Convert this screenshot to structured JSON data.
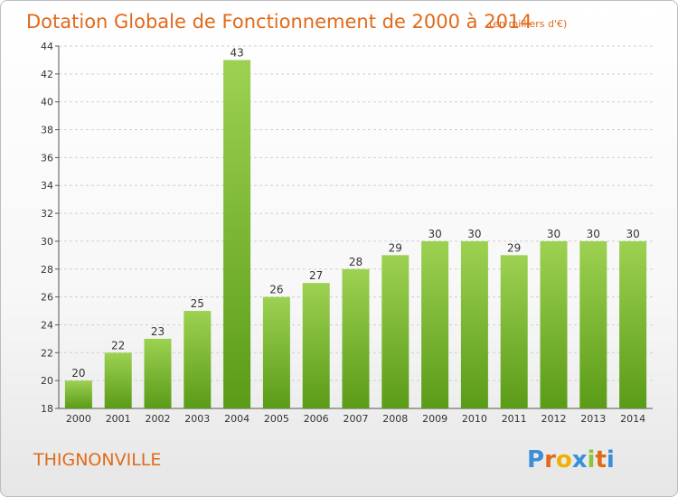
{
  "chart_data": {
    "type": "bar",
    "title": "Dotation Globale de Fonctionnement de 2000 à 2014",
    "subtitle": "(en milliers d'€)",
    "categories": [
      "2000",
      "2001",
      "2002",
      "2003",
      "2004",
      "2005",
      "2006",
      "2007",
      "2008",
      "2009",
      "2010",
      "2011",
      "2012",
      "2013",
      "2014"
    ],
    "values": [
      20,
      22,
      23,
      25,
      43,
      26,
      27,
      28,
      29,
      30,
      30,
      29,
      30,
      30,
      30
    ],
    "ylim": [
      18,
      44
    ],
    "yticks": [
      18,
      20,
      22,
      24,
      26,
      28,
      30,
      32,
      34,
      36,
      38,
      40,
      42,
      44
    ],
    "grid": "horizontal-dashed",
    "legend": "none"
  },
  "commune": "THIGNONVILLE",
  "logo": {
    "letters": [
      "P",
      "r",
      "o",
      "x",
      "i",
      "t",
      "i"
    ],
    "colors": [
      "#3a8fd8",
      "#e06a1a",
      "#f0b000",
      "#3a8fd8",
      "#8bc53f",
      "#e06a1a",
      "#3a8fd8"
    ]
  },
  "colors": {
    "bar_top": "#9dd152",
    "bar_bottom": "#5a9b18",
    "accent": "#e06a1a"
  }
}
